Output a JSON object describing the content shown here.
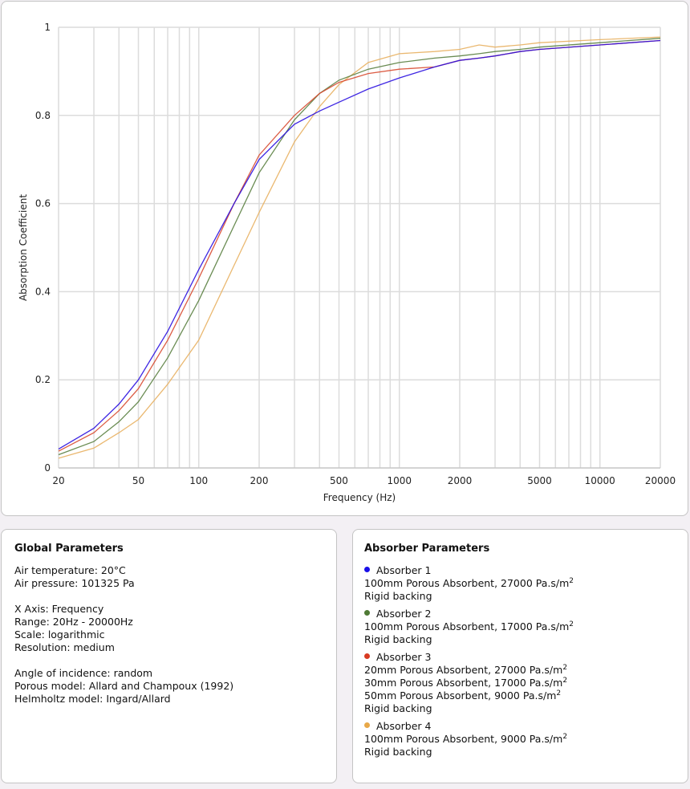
{
  "chart_data": {
    "type": "line",
    "xlabel": "Frequency (Hz)",
    "ylabel": "Absorption Coefficient",
    "xscale": "log",
    "xlim": [
      20,
      20000
    ],
    "ylim": [
      0,
      1
    ],
    "grid": true,
    "xticks": [
      20,
      50,
      100,
      200,
      500,
      1000,
      2000,
      5000,
      10000,
      20000
    ],
    "xtick_labels": [
      "20",
      "50",
      "100",
      "200",
      "500",
      "1000",
      "2000",
      "5000",
      "10000",
      "20000"
    ],
    "yticks": [
      0,
      0.2,
      0.4,
      0.6,
      0.8,
      1
    ],
    "ytick_labels": [
      "0",
      "0.2",
      "0.4",
      "0.6",
      "0.8",
      "1"
    ],
    "x": [
      20,
      30,
      40,
      50,
      70,
      100,
      150,
      200,
      300,
      400,
      500,
      700,
      1000,
      1500,
      2000,
      2500,
      3000,
      4000,
      5000,
      10000,
      20000
    ],
    "series": [
      {
        "name": "Absorber 1",
        "color": "#2a10e0",
        "values": [
          0.043,
          0.09,
          0.145,
          0.2,
          0.31,
          0.45,
          0.6,
          0.7,
          0.78,
          0.81,
          0.83,
          0.86,
          0.885,
          0.91,
          0.925,
          0.93,
          0.935,
          0.945,
          0.95,
          0.96,
          0.97
        ]
      },
      {
        "name": "Absorber 2",
        "color": "#5a8040",
        "values": [
          0.03,
          0.06,
          0.105,
          0.15,
          0.25,
          0.38,
          0.55,
          0.67,
          0.79,
          0.85,
          0.88,
          0.905,
          0.92,
          0.93,
          0.935,
          0.94,
          0.945,
          0.95,
          0.955,
          0.965,
          0.975
        ]
      },
      {
        "name": "Absorber 3",
        "color": "#d84a30",
        "values": [
          0.038,
          0.08,
          0.13,
          0.18,
          0.29,
          0.43,
          0.6,
          0.71,
          0.8,
          0.85,
          0.875,
          0.895,
          0.905,
          0.91,
          0.925,
          0.93,
          0.935,
          0.945,
          0.95,
          0.96,
          0.97
        ]
      },
      {
        "name": "Absorber 4",
        "color": "#e8b060",
        "values": [
          0.022,
          0.045,
          0.08,
          0.11,
          0.19,
          0.29,
          0.46,
          0.58,
          0.74,
          0.82,
          0.87,
          0.92,
          0.94,
          0.945,
          0.95,
          0.96,
          0.955,
          0.96,
          0.965,
          0.972,
          0.978
        ]
      }
    ]
  },
  "global": {
    "title": "Global Parameters",
    "lines": [
      "Air temperature: 20°C",
      "Air pressure: 101325 Pa",
      "",
      "X Axis: Frequency",
      "Range: 20Hz - 20000Hz",
      "Scale: logarithmic",
      "Resolution: medium",
      "",
      "Angle of incidence: random",
      "Porous model: Allard and Champoux (1992)",
      "Helmholtz model: Ingard/Allard"
    ]
  },
  "absorbers": {
    "title": "Absorber Parameters",
    "items": [
      {
        "name": "Absorber 1",
        "color": "#1a10e8",
        "layers": [
          "100mm Porous Absorbent, 27000 Pa.s/m"
        ],
        "backing": "Rigid backing"
      },
      {
        "name": "Absorber 2",
        "color": "#4f7a35",
        "layers": [
          "100mm Porous Absorbent, 17000 Pa.s/m"
        ],
        "backing": "Rigid backing"
      },
      {
        "name": "Absorber 3",
        "color": "#d83a22",
        "layers": [
          "20mm Porous Absorbent, 27000 Pa.s/m",
          "30mm Porous Absorbent, 17000 Pa.s/m",
          "50mm Porous Absorbent, 9000 Pa.s/m"
        ],
        "backing": "Rigid backing"
      },
      {
        "name": "Absorber 4",
        "color": "#e8a848",
        "layers": [
          "100mm Porous Absorbent, 9000 Pa.s/m"
        ],
        "backing": "Rigid backing"
      }
    ],
    "unit_sup": "2"
  }
}
